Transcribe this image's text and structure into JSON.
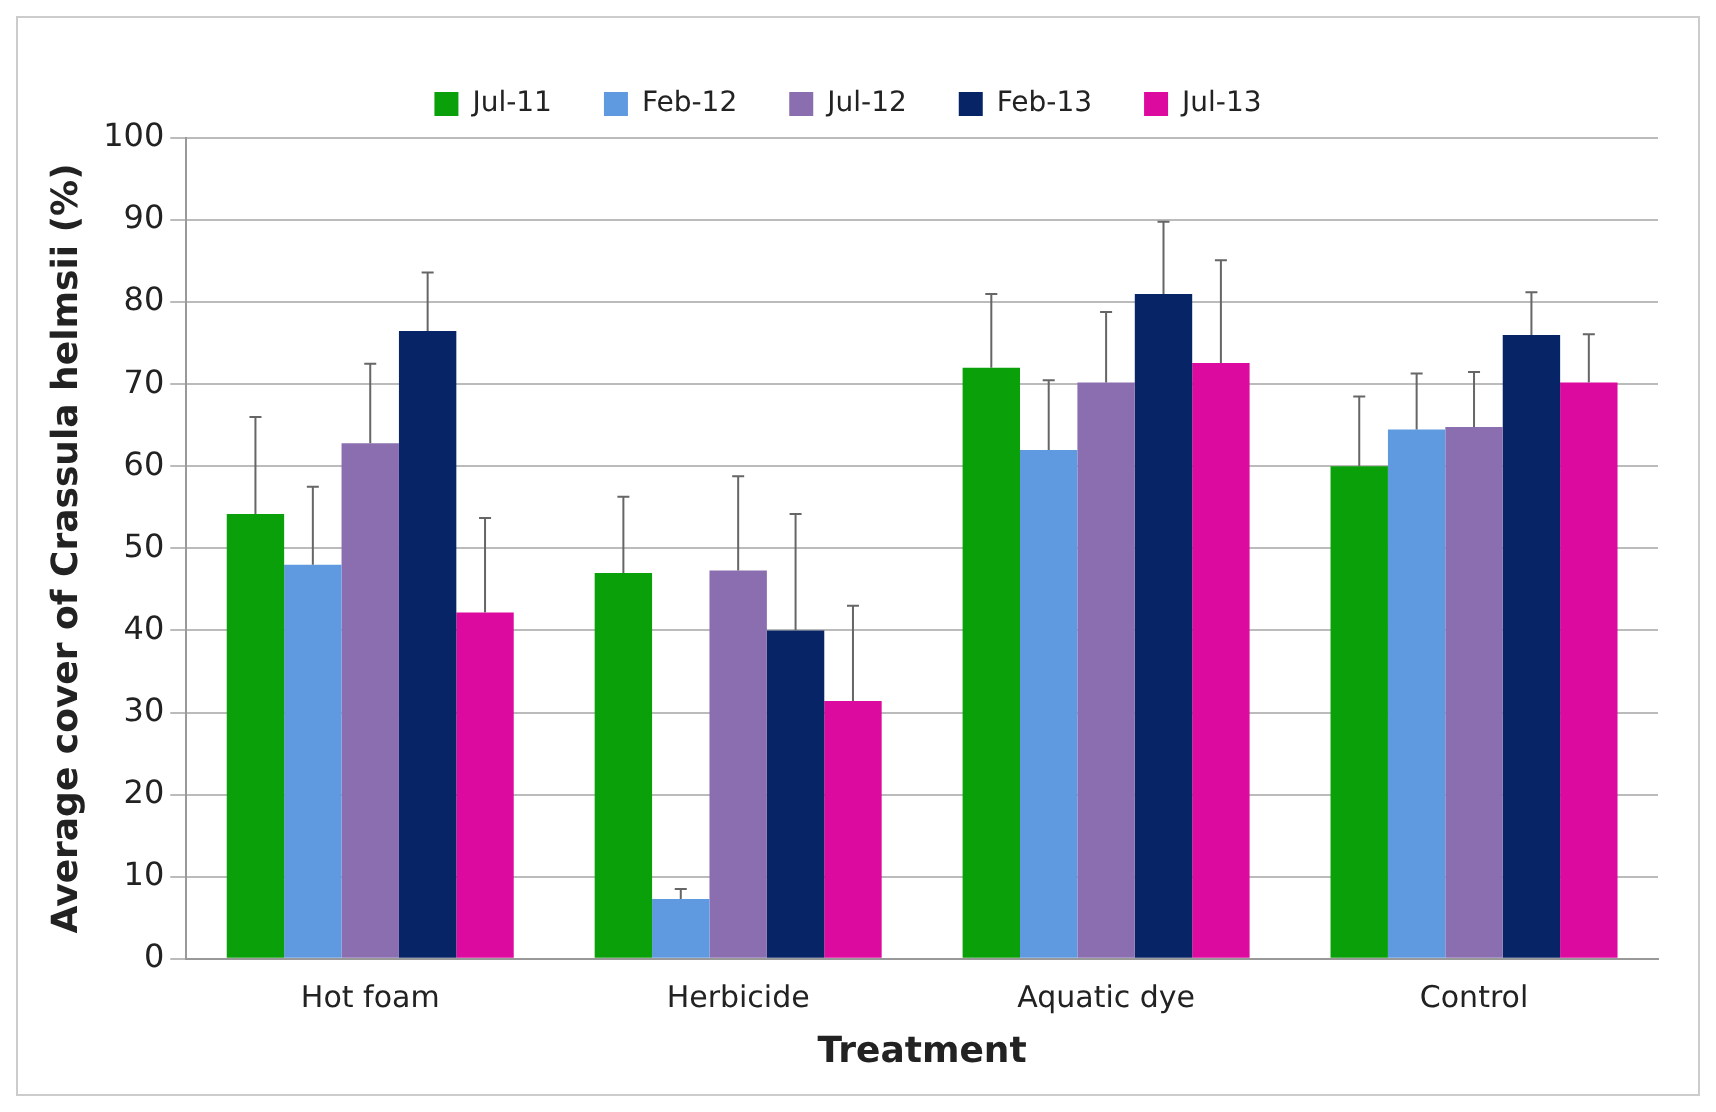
{
  "chart_data": {
    "type": "bar",
    "xlabel": "Treatment",
    "ylabel": "Average cover of Crassula helmsii (%)",
    "categories": [
      "Hot foam",
      "Herbicide",
      "Aquatic dye",
      "Control"
    ],
    "series": [
      {
        "name": "Jul-11",
        "color": "#0aa00a",
        "values": [
          54.2,
          47,
          72,
          60
        ],
        "errors": [
          [
            54.2,
            66
          ],
          [
            47,
            56.3
          ],
          [
            72,
            81
          ],
          [
            60,
            68.5
          ]
        ]
      },
      {
        "name": "Feb-12",
        "color": "#5f9ae0",
        "values": [
          48,
          7.3,
          62,
          64.5
        ],
        "errors": [
          [
            48,
            57.5
          ],
          [
            7.3,
            8.5
          ],
          [
            62,
            70.5
          ],
          [
            64.5,
            71.3
          ]
        ]
      },
      {
        "name": "Jul-12",
        "color": "#8a6eb0",
        "values": [
          62.8,
          47.3,
          70.2,
          64.8
        ],
        "errors": [
          [
            62.8,
            72.5
          ],
          [
            47.3,
            58.8
          ],
          [
            70.2,
            78.8
          ],
          [
            64.8,
            71.5
          ]
        ]
      },
      {
        "name": "Feb-13",
        "color": "#062466",
        "values": [
          76.5,
          40,
          81,
          76
        ],
        "errors": [
          [
            76.5,
            83.6
          ],
          [
            40,
            54.2
          ],
          [
            81,
            89.8
          ],
          [
            76,
            81.2
          ]
        ]
      },
      {
        "name": "Jul-13",
        "color": "#dd0aa0",
        "values": [
          42.2,
          31.4,
          72.6,
          70.2
        ],
        "errors": [
          [
            42.2,
            53.7
          ],
          [
            31.4,
            43
          ],
          [
            72.6,
            85.1
          ],
          [
            70.2,
            76.1
          ]
        ]
      }
    ],
    "ylim": [
      0,
      100
    ],
    "yticks": [
      0,
      10,
      20,
      30,
      40,
      50,
      60,
      70,
      80,
      90,
      100
    ],
    "grid": "y",
    "legend": "top"
  }
}
